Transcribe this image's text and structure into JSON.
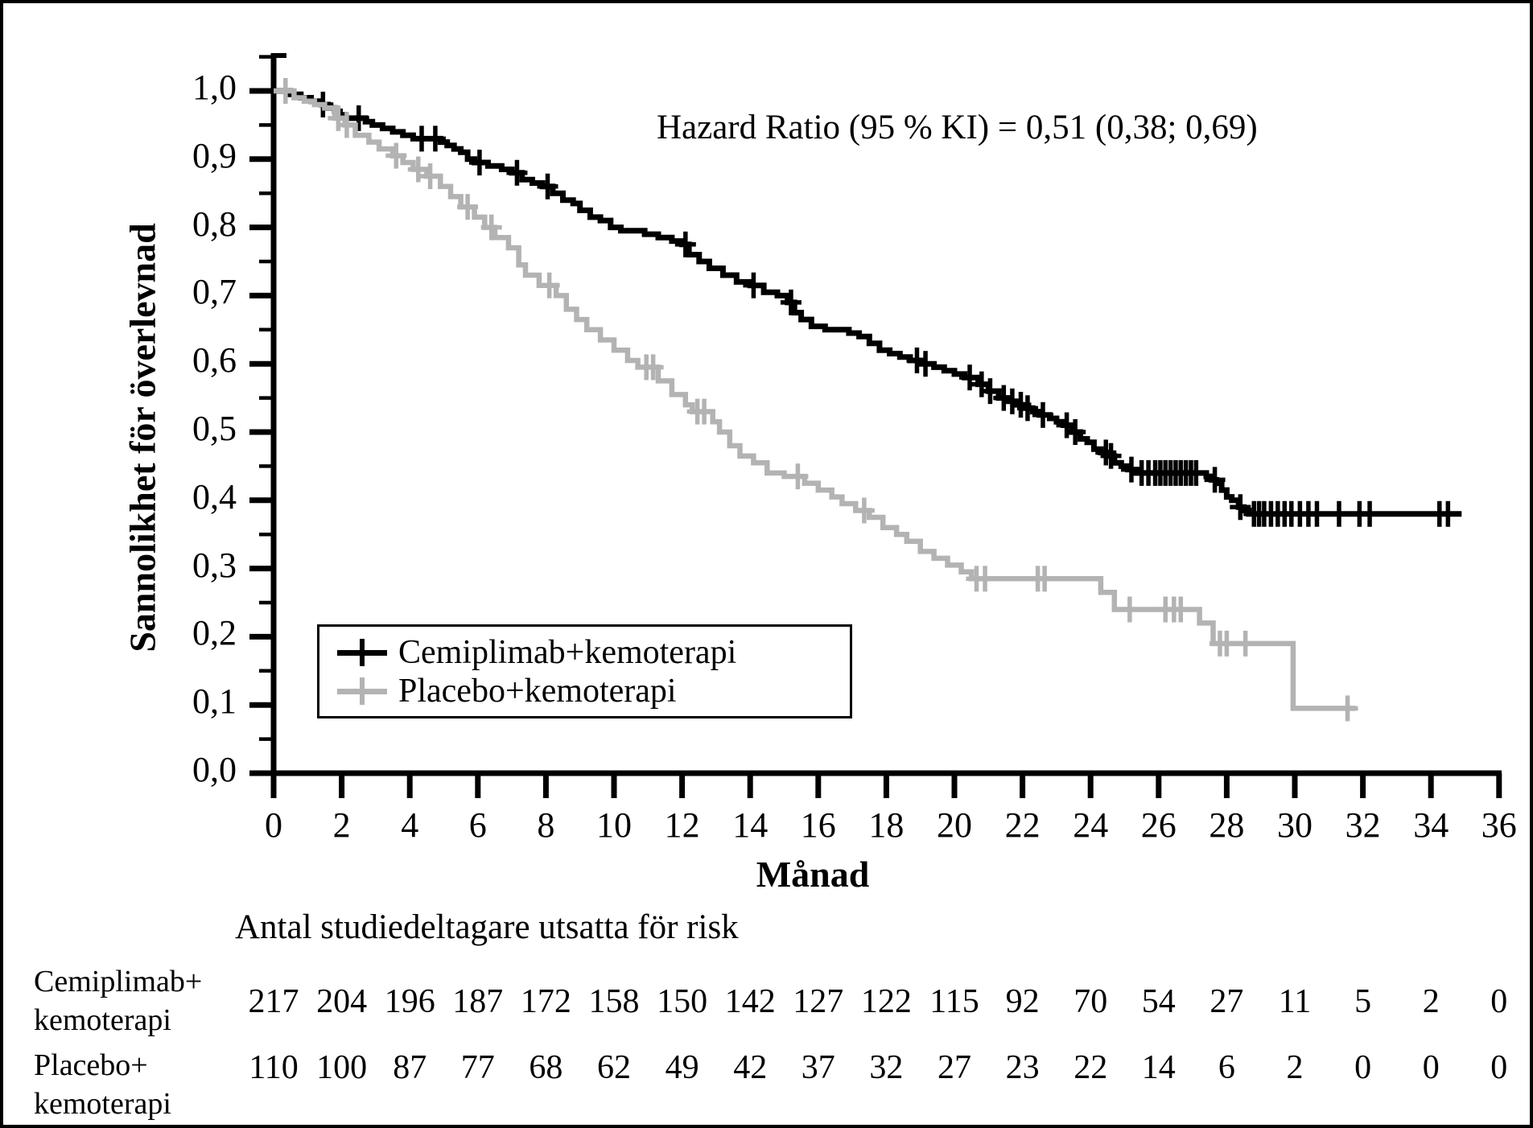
{
  "chart_data": {
    "type": "line",
    "subtype": "kaplan-meier-step",
    "title": "",
    "xlabel": "Månad",
    "ylabel": "Sannolikhet för överlevnad",
    "annotation": "Hazard Ratio (95 % KI) = 0,51 (0,38; 0,69)",
    "xlim": [
      0,
      36
    ],
    "ylim": [
      0.0,
      1.0
    ],
    "grid": false,
    "legend_position": "inside-lower-left",
    "x_ticks": [
      0,
      2,
      4,
      6,
      8,
      10,
      12,
      14,
      16,
      18,
      20,
      22,
      24,
      26,
      28,
      30,
      32,
      34,
      36
    ],
    "y_ticks": [
      [
        "1,0",
        1.0
      ],
      [
        "0,9",
        0.9
      ],
      [
        "0,8",
        0.8
      ],
      [
        "0,7",
        0.7
      ],
      [
        "0,6",
        0.6
      ],
      [
        "0,5",
        0.5
      ],
      [
        "0,4",
        0.4
      ],
      [
        "0,3",
        0.3
      ],
      [
        "0,2",
        0.2
      ],
      [
        "0,1",
        0.1
      ],
      [
        "0,0",
        0.0
      ]
    ],
    "series": [
      {
        "name": "Cemiplimab+kemoterapi",
        "color": "#000000",
        "steps": [
          [
            0,
            1.0
          ],
          [
            0.5,
            0.995
          ],
          [
            0.8,
            0.99
          ],
          [
            1.1,
            0.985
          ],
          [
            1.4,
            0.98
          ],
          [
            1.6,
            0.975
          ],
          [
            1.8,
            0.97
          ],
          [
            1.95,
            0.965
          ],
          [
            2.1,
            0.96
          ],
          [
            2.7,
            0.955
          ],
          [
            2.9,
            0.95
          ],
          [
            3.2,
            0.945
          ],
          [
            3.5,
            0.94
          ],
          [
            3.8,
            0.935
          ],
          [
            4.1,
            0.93
          ],
          [
            4.9,
            0.925
          ],
          [
            5.1,
            0.92
          ],
          [
            5.3,
            0.915
          ],
          [
            5.5,
            0.91
          ],
          [
            5.7,
            0.9
          ],
          [
            5.9,
            0.895
          ],
          [
            6.3,
            0.89
          ],
          [
            6.7,
            0.885
          ],
          [
            7.0,
            0.88
          ],
          [
            7.3,
            0.87
          ],
          [
            7.6,
            0.865
          ],
          [
            7.9,
            0.86
          ],
          [
            8.2,
            0.85
          ],
          [
            8.5,
            0.84
          ],
          [
            8.8,
            0.835
          ],
          [
            9.0,
            0.825
          ],
          [
            9.3,
            0.815
          ],
          [
            9.6,
            0.81
          ],
          [
            9.9,
            0.8
          ],
          [
            10.2,
            0.795
          ],
          [
            10.9,
            0.79
          ],
          [
            11.3,
            0.785
          ],
          [
            11.7,
            0.78
          ],
          [
            12.0,
            0.775
          ],
          [
            12.2,
            0.76
          ],
          [
            12.5,
            0.75
          ],
          [
            12.8,
            0.74
          ],
          [
            13.2,
            0.73
          ],
          [
            13.6,
            0.72
          ],
          [
            14.0,
            0.715
          ],
          [
            14.4,
            0.705
          ],
          [
            14.8,
            0.7
          ],
          [
            15.1,
            0.69
          ],
          [
            15.3,
            0.675
          ],
          [
            15.5,
            0.665
          ],
          [
            15.8,
            0.655
          ],
          [
            16.2,
            0.65
          ],
          [
            16.9,
            0.645
          ],
          [
            17.2,
            0.64
          ],
          [
            17.5,
            0.63
          ],
          [
            17.8,
            0.62
          ],
          [
            18.1,
            0.615
          ],
          [
            18.4,
            0.61
          ],
          [
            18.7,
            0.605
          ],
          [
            19.0,
            0.6
          ],
          [
            19.4,
            0.595
          ],
          [
            19.7,
            0.59
          ],
          [
            20.0,
            0.585
          ],
          [
            20.3,
            0.58
          ],
          [
            20.7,
            0.57
          ],
          [
            21.0,
            0.56
          ],
          [
            21.3,
            0.55
          ],
          [
            21.6,
            0.545
          ],
          [
            21.8,
            0.54
          ],
          [
            22.0,
            0.535
          ],
          [
            22.3,
            0.53
          ],
          [
            22.5,
            0.525
          ],
          [
            22.8,
            0.52
          ],
          [
            23.0,
            0.515
          ],
          [
            23.2,
            0.51
          ],
          [
            23.45,
            0.5
          ],
          [
            23.7,
            0.49
          ],
          [
            23.9,
            0.485
          ],
          [
            24.1,
            0.475
          ],
          [
            24.3,
            0.47
          ],
          [
            24.5,
            0.465
          ],
          [
            24.7,
            0.455
          ],
          [
            24.9,
            0.45
          ],
          [
            25.1,
            0.445
          ],
          [
            25.35,
            0.44
          ],
          [
            27.4,
            0.435
          ],
          [
            27.55,
            0.43
          ],
          [
            27.7,
            0.425
          ],
          [
            27.85,
            0.415
          ],
          [
            28.0,
            0.405
          ],
          [
            28.15,
            0.4
          ],
          [
            28.35,
            0.39
          ],
          [
            28.5,
            0.385
          ],
          [
            28.65,
            0.38
          ],
          [
            34.9,
            0.38
          ]
        ],
        "censors": [
          [
            1.45,
            0.98
          ],
          [
            2.5,
            0.96
          ],
          [
            4.35,
            0.93
          ],
          [
            4.75,
            0.93
          ],
          [
            6.05,
            0.895
          ],
          [
            7.15,
            0.88
          ],
          [
            8.05,
            0.86
          ],
          [
            12.1,
            0.775
          ],
          [
            14.1,
            0.715
          ],
          [
            15.2,
            0.69
          ],
          [
            18.9,
            0.605
          ],
          [
            19.15,
            0.6
          ],
          [
            20.45,
            0.58
          ],
          [
            20.8,
            0.57
          ],
          [
            21.05,
            0.56
          ],
          [
            21.45,
            0.55
          ],
          [
            21.7,
            0.545
          ],
          [
            21.95,
            0.54
          ],
          [
            22.15,
            0.535
          ],
          [
            22.6,
            0.525
          ],
          [
            23.3,
            0.51
          ],
          [
            23.55,
            0.5
          ],
          [
            24.45,
            0.47
          ],
          [
            24.6,
            0.465
          ],
          [
            25.2,
            0.445
          ],
          [
            25.5,
            0.44
          ],
          [
            25.7,
            0.44
          ],
          [
            25.9,
            0.44
          ],
          [
            26.05,
            0.44
          ],
          [
            26.2,
            0.44
          ],
          [
            26.35,
            0.44
          ],
          [
            26.5,
            0.44
          ],
          [
            26.65,
            0.44
          ],
          [
            26.8,
            0.44
          ],
          [
            26.95,
            0.44
          ],
          [
            27.1,
            0.44
          ],
          [
            27.65,
            0.43
          ],
          [
            28.4,
            0.39
          ],
          [
            28.8,
            0.38
          ],
          [
            28.95,
            0.38
          ],
          [
            29.1,
            0.38
          ],
          [
            29.3,
            0.38
          ],
          [
            29.5,
            0.38
          ],
          [
            29.7,
            0.38
          ],
          [
            29.9,
            0.38
          ],
          [
            30.15,
            0.38
          ],
          [
            30.4,
            0.38
          ],
          [
            30.65,
            0.38
          ],
          [
            31.3,
            0.38
          ],
          [
            31.9,
            0.38
          ],
          [
            32.2,
            0.38
          ],
          [
            34.25,
            0.38
          ],
          [
            34.5,
            0.38
          ]
        ]
      },
      {
        "name": "Placebo+kemoterapi",
        "color": "#b3b3b3",
        "steps": [
          [
            0,
            1.0
          ],
          [
            0.6,
            0.99
          ],
          [
            0.9,
            0.985
          ],
          [
            1.2,
            0.98
          ],
          [
            1.5,
            0.975
          ],
          [
            1.8,
            0.96
          ],
          [
            2.1,
            0.95
          ],
          [
            2.4,
            0.935
          ],
          [
            2.8,
            0.925
          ],
          [
            3.1,
            0.915
          ],
          [
            3.5,
            0.905
          ],
          [
            3.8,
            0.895
          ],
          [
            4.1,
            0.885
          ],
          [
            4.5,
            0.875
          ],
          [
            4.9,
            0.86
          ],
          [
            5.2,
            0.845
          ],
          [
            5.5,
            0.83
          ],
          [
            5.9,
            0.815
          ],
          [
            6.2,
            0.8
          ],
          [
            6.5,
            0.785
          ],
          [
            6.9,
            0.77
          ],
          [
            7.2,
            0.745
          ],
          [
            7.4,
            0.73
          ],
          [
            7.8,
            0.715
          ],
          [
            8.3,
            0.7
          ],
          [
            8.6,
            0.68
          ],
          [
            8.9,
            0.665
          ],
          [
            9.2,
            0.65
          ],
          [
            9.6,
            0.635
          ],
          [
            10.0,
            0.62
          ],
          [
            10.4,
            0.605
          ],
          [
            10.7,
            0.595
          ],
          [
            11.3,
            0.575
          ],
          [
            11.7,
            0.555
          ],
          [
            12.1,
            0.54
          ],
          [
            12.3,
            0.53
          ],
          [
            12.9,
            0.515
          ],
          [
            13.1,
            0.5
          ],
          [
            13.4,
            0.48
          ],
          [
            13.7,
            0.465
          ],
          [
            14.1,
            0.455
          ],
          [
            14.5,
            0.44
          ],
          [
            15.0,
            0.435
          ],
          [
            15.6,
            0.425
          ],
          [
            16.0,
            0.415
          ],
          [
            16.4,
            0.405
          ],
          [
            16.7,
            0.395
          ],
          [
            17.1,
            0.385
          ],
          [
            17.5,
            0.375
          ],
          [
            17.9,
            0.36
          ],
          [
            18.3,
            0.35
          ],
          [
            18.6,
            0.34
          ],
          [
            19.0,
            0.325
          ],
          [
            19.4,
            0.315
          ],
          [
            19.8,
            0.305
          ],
          [
            20.2,
            0.295
          ],
          [
            20.5,
            0.285
          ],
          [
            24.3,
            0.265
          ],
          [
            24.7,
            0.24
          ],
          [
            27.2,
            0.22
          ],
          [
            27.6,
            0.19
          ],
          [
            29.95,
            0.095
          ],
          [
            31.8,
            0.095
          ]
        ],
        "censors": [
          [
            0.35,
            1.0
          ],
          [
            1.9,
            0.96
          ],
          [
            2.15,
            0.95
          ],
          [
            3.6,
            0.905
          ],
          [
            4.25,
            0.885
          ],
          [
            4.6,
            0.875
          ],
          [
            5.7,
            0.83
          ],
          [
            6.4,
            0.8
          ],
          [
            8.1,
            0.715
          ],
          [
            10.95,
            0.595
          ],
          [
            11.15,
            0.595
          ],
          [
            12.45,
            0.53
          ],
          [
            12.65,
            0.53
          ],
          [
            15.4,
            0.435
          ],
          [
            17.35,
            0.385
          ],
          [
            20.65,
            0.285
          ],
          [
            20.9,
            0.285
          ],
          [
            22.45,
            0.285
          ],
          [
            22.65,
            0.285
          ],
          [
            25.15,
            0.24
          ],
          [
            26.2,
            0.24
          ],
          [
            26.45,
            0.24
          ],
          [
            26.65,
            0.24
          ],
          [
            27.8,
            0.19
          ],
          [
            28.0,
            0.19
          ],
          [
            28.55,
            0.19
          ],
          [
            31.55,
            0.095
          ]
        ]
      }
    ],
    "risk_table": {
      "header": "Antal studiedeltagare utsatta för risk",
      "months": [
        0,
        2,
        4,
        6,
        8,
        10,
        12,
        14,
        16,
        18,
        20,
        22,
        24,
        26,
        28,
        30,
        32,
        34,
        36
      ],
      "rows": [
        {
          "label_line1": "Cemiplimab+",
          "label_line2": "kemoterapi",
          "counts": [
            217,
            204,
            196,
            187,
            172,
            158,
            150,
            142,
            127,
            122,
            115,
            92,
            70,
            54,
            27,
            11,
            5,
            2,
            0
          ]
        },
        {
          "label_line1": "Placebo+",
          "label_line2": "kemoterapi",
          "counts": [
            110,
            100,
            87,
            77,
            68,
            62,
            49,
            42,
            37,
            32,
            27,
            23,
            22,
            14,
            6,
            2,
            0,
            0,
            0
          ]
        }
      ]
    }
  }
}
